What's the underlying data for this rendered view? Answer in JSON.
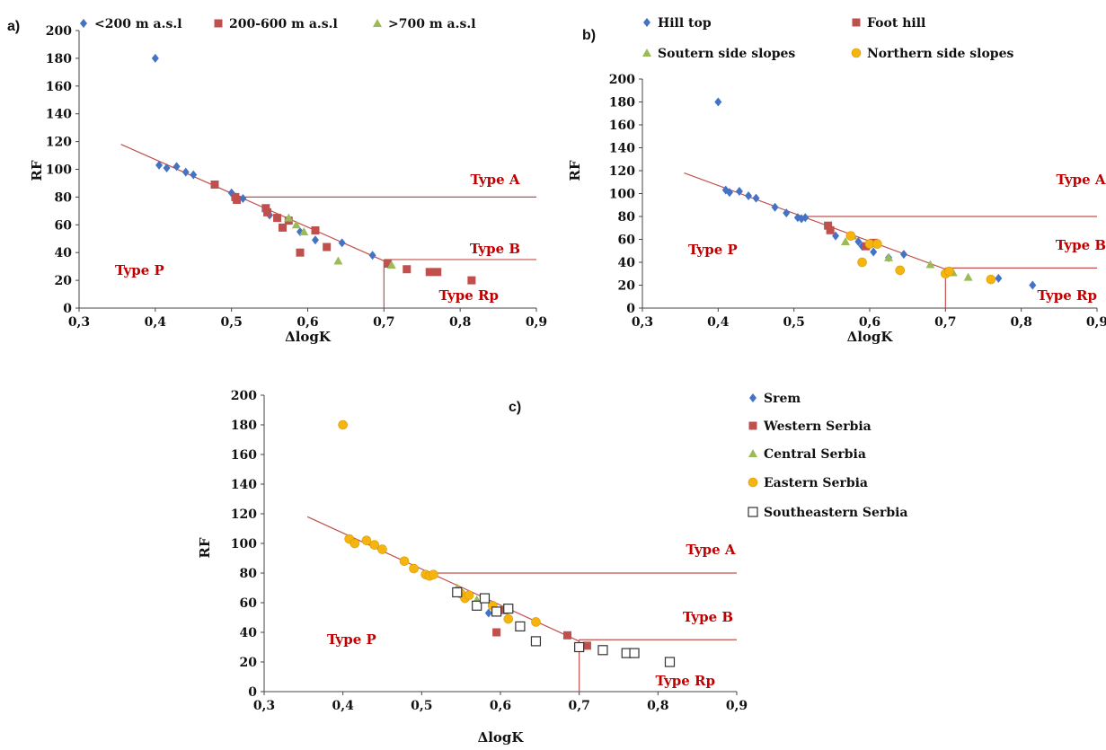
{
  "colors": {
    "blue": "#4472c4",
    "red": "#c0504d",
    "green": "#9bbb59",
    "orange": "#f6b40e",
    "line": "#c0504d",
    "type_label": "#c00000"
  },
  "chart_data": [
    {
      "panel_label": "a)",
      "type": "scatter",
      "xlabel": "ΔlogK",
      "ylabel": "RF",
      "xlim": [
        0.3,
        0.9
      ],
      "ylim": [
        0,
        200
      ],
      "xticks": [
        "0,3",
        "0,4",
        "0,5",
        "0,6",
        "0,7",
        "0,8",
        "0,9"
      ],
      "yticks": [
        "0",
        "20",
        "40",
        "60",
        "80",
        "100",
        "120",
        "140",
        "160",
        "180",
        "200"
      ],
      "grid": false,
      "legend_position": "top",
      "type_labels": {
        "a": "Type A",
        "b": "Type B",
        "p": "Type P",
        "rp": "Type Rp"
      },
      "series": [
        {
          "name": "<200 m a.s.l",
          "marker": "diamond",
          "color": "#4472c4",
          "points": [
            [
              0.4,
              180
            ],
            [
              0.405,
              103
            ],
            [
              0.415,
              101
            ],
            [
              0.428,
              102
            ],
            [
              0.44,
              98
            ],
            [
              0.45,
              96
            ],
            [
              0.5,
              83
            ],
            [
              0.505,
              80
            ],
            [
              0.515,
              79
            ],
            [
              0.55,
              67
            ],
            [
              0.59,
              55
            ],
            [
              0.61,
              49
            ],
            [
              0.645,
              47
            ],
            [
              0.685,
              38
            ]
          ]
        },
        {
          "name": "200-600 m a.s.l",
          "marker": "square",
          "color": "#c0504d",
          "points": [
            [
              0.478,
              89
            ],
            [
              0.505,
              80
            ],
            [
              0.507,
              78
            ],
            [
              0.545,
              72
            ],
            [
              0.547,
              69
            ],
            [
              0.56,
              65
            ],
            [
              0.567,
              58
            ],
            [
              0.575,
              63
            ],
            [
              0.59,
              40
            ],
            [
              0.61,
              56
            ],
            [
              0.625,
              44
            ],
            [
              0.705,
              32
            ],
            [
              0.73,
              28
            ],
            [
              0.76,
              26
            ],
            [
              0.77,
              26
            ],
            [
              0.815,
              20
            ]
          ]
        },
        {
          "name": ">700 m a.s.l",
          "marker": "triangle",
          "color": "#9bbb59",
          "points": [
            [
              0.575,
              65
            ],
            [
              0.585,
              60
            ],
            [
              0.595,
              55
            ],
            [
              0.64,
              34
            ],
            [
              0.71,
              31
            ]
          ]
        }
      ]
    },
    {
      "panel_label": "b)",
      "type": "scatter",
      "xlabel": "ΔlogK",
      "ylabel": "RF",
      "xlim": [
        0.3,
        0.9
      ],
      "ylim": [
        0,
        200
      ],
      "xticks": [
        "0,3",
        "0,4",
        "0,5",
        "0,6",
        "0,7",
        "0,8",
        "0,9"
      ],
      "yticks": [
        "0",
        "20",
        "40",
        "60",
        "80",
        "100",
        "120",
        "140",
        "160",
        "180",
        "200"
      ],
      "grid": false,
      "legend_position": "top",
      "type_labels": {
        "a": "Type A",
        "b": "Type B",
        "p": "Type P",
        "rp": "Type Rp"
      },
      "series": [
        {
          "name": "Hill top",
          "marker": "diamond",
          "color": "#4472c4",
          "points": [
            [
              0.4,
              180
            ],
            [
              0.41,
              103
            ],
            [
              0.415,
              101
            ],
            [
              0.428,
              102
            ],
            [
              0.44,
              98
            ],
            [
              0.45,
              96
            ],
            [
              0.475,
              88
            ],
            [
              0.49,
              83
            ],
            [
              0.505,
              79
            ],
            [
              0.51,
              78
            ],
            [
              0.515,
              79
            ],
            [
              0.555,
              63
            ],
            [
              0.585,
              58
            ],
            [
              0.59,
              54
            ],
            [
              0.605,
              49
            ],
            [
              0.625,
              44
            ],
            [
              0.645,
              47
            ],
            [
              0.77,
              26
            ],
            [
              0.815,
              20
            ]
          ]
        },
        {
          "name": "Foot hill",
          "marker": "square",
          "color": "#c0504d",
          "points": [
            [
              0.545,
              72
            ],
            [
              0.548,
              68
            ],
            [
              0.595,
              54
            ],
            [
              0.605,
              57
            ]
          ]
        },
        {
          "name": "Soutern side slopes",
          "marker": "triangle",
          "color": "#9bbb59",
          "points": [
            [
              0.568,
              58
            ],
            [
              0.578,
              63
            ],
            [
              0.625,
              44
            ],
            [
              0.68,
              38
            ],
            [
              0.71,
              31
            ],
            [
              0.73,
              27
            ]
          ]
        },
        {
          "name": "Northern side slopes",
          "marker": "circle",
          "color": "#f6b40e",
          "points": [
            [
              0.575,
              63
            ],
            [
              0.59,
              40
            ],
            [
              0.6,
              56
            ],
            [
              0.61,
              56
            ],
            [
              0.64,
              33
            ],
            [
              0.7,
              30
            ],
            [
              0.705,
              32
            ],
            [
              0.76,
              25
            ]
          ]
        }
      ]
    },
    {
      "panel_label": "c)",
      "type": "scatter",
      "xlabel": "ΔlogK",
      "ylabel": "RF",
      "xlim": [
        0.3,
        0.9
      ],
      "ylim": [
        0,
        200
      ],
      "xticks": [
        "0,3",
        "0,4",
        "0,5",
        "0,6",
        "0,7",
        "0,8",
        "0,9"
      ],
      "yticks": [
        "0",
        "20",
        "40",
        "60",
        "80",
        "100",
        "120",
        "140",
        "160",
        "180",
        "200"
      ],
      "grid": false,
      "legend_position": "right",
      "type_labels": {
        "a": "Type A",
        "b": "Type B",
        "p": "Type P",
        "rp": "Type Rp"
      },
      "series": [
        {
          "name": "Srem",
          "marker": "diamond",
          "color": "#4472c4",
          "points": [
            [
              0.585,
              53
            ]
          ]
        },
        {
          "name": "Western Serbia",
          "marker": "square",
          "color": "#c0504d",
          "points": [
            [
              0.595,
              40
            ],
            [
              0.605,
              55
            ],
            [
              0.685,
              38
            ],
            [
              0.71,
              31
            ]
          ]
        },
        {
          "name": "Central Serbia",
          "marker": "triangle",
          "color": "#9bbb59",
          "points": [
            [
              0.545,
              70
            ],
            [
              0.57,
              62
            ]
          ]
        },
        {
          "name": "Eastern Serbia",
          "marker": "circle",
          "color": "#f6b40e",
          "points": [
            [
              0.4,
              180
            ],
            [
              0.408,
              103
            ],
            [
              0.415,
              100
            ],
            [
              0.43,
              102
            ],
            [
              0.44,
              99
            ],
            [
              0.45,
              96
            ],
            [
              0.478,
              88
            ],
            [
              0.49,
              83
            ],
            [
              0.505,
              79
            ],
            [
              0.51,
              78
            ],
            [
              0.515,
              79
            ],
            [
              0.55,
              66
            ],
            [
              0.555,
              63
            ],
            [
              0.56,
              65
            ],
            [
              0.59,
              58
            ],
            [
              0.61,
              49
            ],
            [
              0.645,
              47
            ]
          ]
        },
        {
          "name": "Southeastern Serbia",
          "marker": "open-square",
          "color": "#333333",
          "points": [
            [
              0.545,
              67
            ],
            [
              0.57,
              58
            ],
            [
              0.58,
              63
            ],
            [
              0.595,
              54
            ],
            [
              0.61,
              56
            ],
            [
              0.625,
              44
            ],
            [
              0.645,
              34
            ],
            [
              0.7,
              30
            ],
            [
              0.73,
              28
            ],
            [
              0.76,
              26
            ],
            [
              0.77,
              26
            ],
            [
              0.815,
              20
            ]
          ]
        }
      ]
    }
  ]
}
